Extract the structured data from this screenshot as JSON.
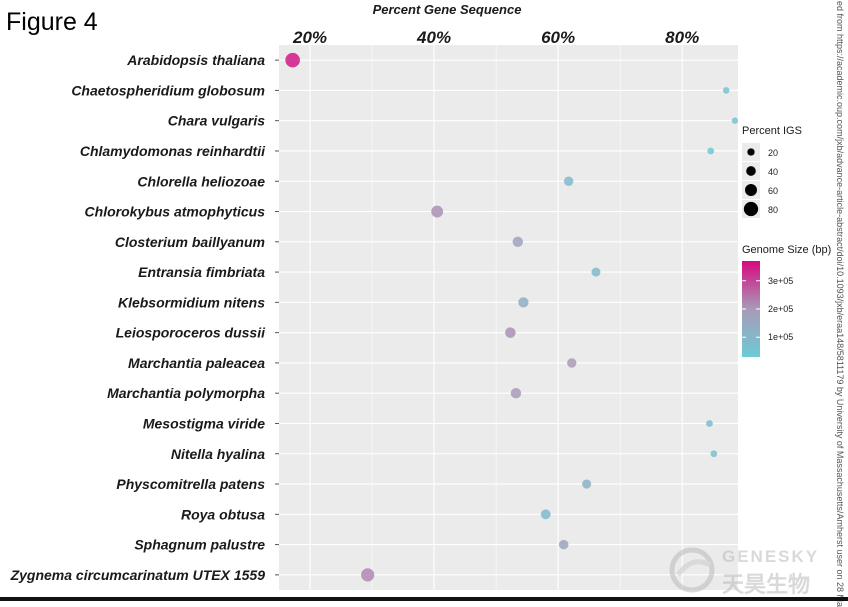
{
  "figure_label": "Figure 4",
  "side_note": "ed from https://academic.oup.com/jxb/advance-article-abstract/doi/10.1093/jxb/eraa148/5811179 by University of Massachusetts/Amherst user on 28 Ma",
  "watermark": {
    "en": "GENESKY",
    "cn": "天昊生物"
  },
  "colors": {
    "panel": "#ebebeb",
    "grid": "#ffffff",
    "low": "#6ccbd6",
    "mid": "#a89ab8",
    "high": "#d8087f"
  },
  "chart_data": {
    "type": "scatter",
    "title": "Percent Gene Sequence",
    "x_ticks": [
      "20%",
      "40%",
      "60%",
      "80%"
    ],
    "x_tick_values": [
      20,
      40,
      60,
      80
    ],
    "xlim": [
      15,
      89
    ],
    "axis_position": "top",
    "grid": true,
    "points": [
      {
        "species": "Arabidopsis thaliana",
        "x": 17.2,
        "igs": 82.8,
        "genome": 350000
      },
      {
        "species": "Chaetospheridium globosum",
        "x": 87.1,
        "igs": 12.9,
        "genome": 60000
      },
      {
        "species": "Chara vulgaris",
        "x": 88.5,
        "igs": 11.5,
        "genome": 55000
      },
      {
        "species": "Chlamydomonas reinhardtii",
        "x": 84.6,
        "igs": 15.4,
        "genome": 40000
      },
      {
        "species": "Chlorella heliozoae",
        "x": 61.7,
        "igs": 38.3,
        "genome": 90000
      },
      {
        "species": "Chlorokybus atmophyticus",
        "x": 40.5,
        "igs": 59.5,
        "genome": 210000
      },
      {
        "species": "Closterium baillyanum",
        "x": 53.5,
        "igs": 46.5,
        "genome": 170000
      },
      {
        "species": "Entransia fimbriata",
        "x": 66.1,
        "igs": 33.9,
        "genome": 85000
      },
      {
        "species": "Klebsormidium nitens",
        "x": 54.4,
        "igs": 45.6,
        "genome": 130000
      },
      {
        "species": "Leiosporoceros dussii",
        "x": 52.3,
        "igs": 47.7,
        "genome": 210000
      },
      {
        "species": "Marchantia paleacea",
        "x": 62.2,
        "igs": 37.8,
        "genome": 200000
      },
      {
        "species": "Marchantia polymorpha",
        "x": 53.2,
        "igs": 46.8,
        "genome": 200000
      },
      {
        "species": "Mesostigma viride",
        "x": 84.4,
        "igs": 15.6,
        "genome": 70000
      },
      {
        "species": "Nitella hyalina",
        "x": 85.1,
        "igs": 14.9,
        "genome": 75000
      },
      {
        "species": "Physcomitrella patens",
        "x": 64.6,
        "igs": 35.4,
        "genome": 120000
      },
      {
        "species": "Roya obtusa",
        "x": 58.0,
        "igs": 42.0,
        "genome": 85000
      },
      {
        "species": "Sphagnum palustre",
        "x": 60.9,
        "igs": 39.1,
        "genome": 165000
      },
      {
        "species": "Zygnema circumcarinatum UTEX 1559",
        "x": 29.3,
        "igs": 70.7,
        "genome": 220000
      }
    ],
    "size_legend": {
      "title": "Percent IGS",
      "breaks": [
        20,
        40,
        60,
        80
      ],
      "labels": [
        "20",
        "40",
        "60",
        "80"
      ]
    },
    "color_legend": {
      "title": "Genome Size (bp)",
      "range": [
        30000,
        370000
      ],
      "breaks": [
        100000,
        200000,
        300000
      ],
      "labels": [
        "1e+05",
        "2e+05",
        "3e+05"
      ]
    },
    "legend_position": "right"
  }
}
